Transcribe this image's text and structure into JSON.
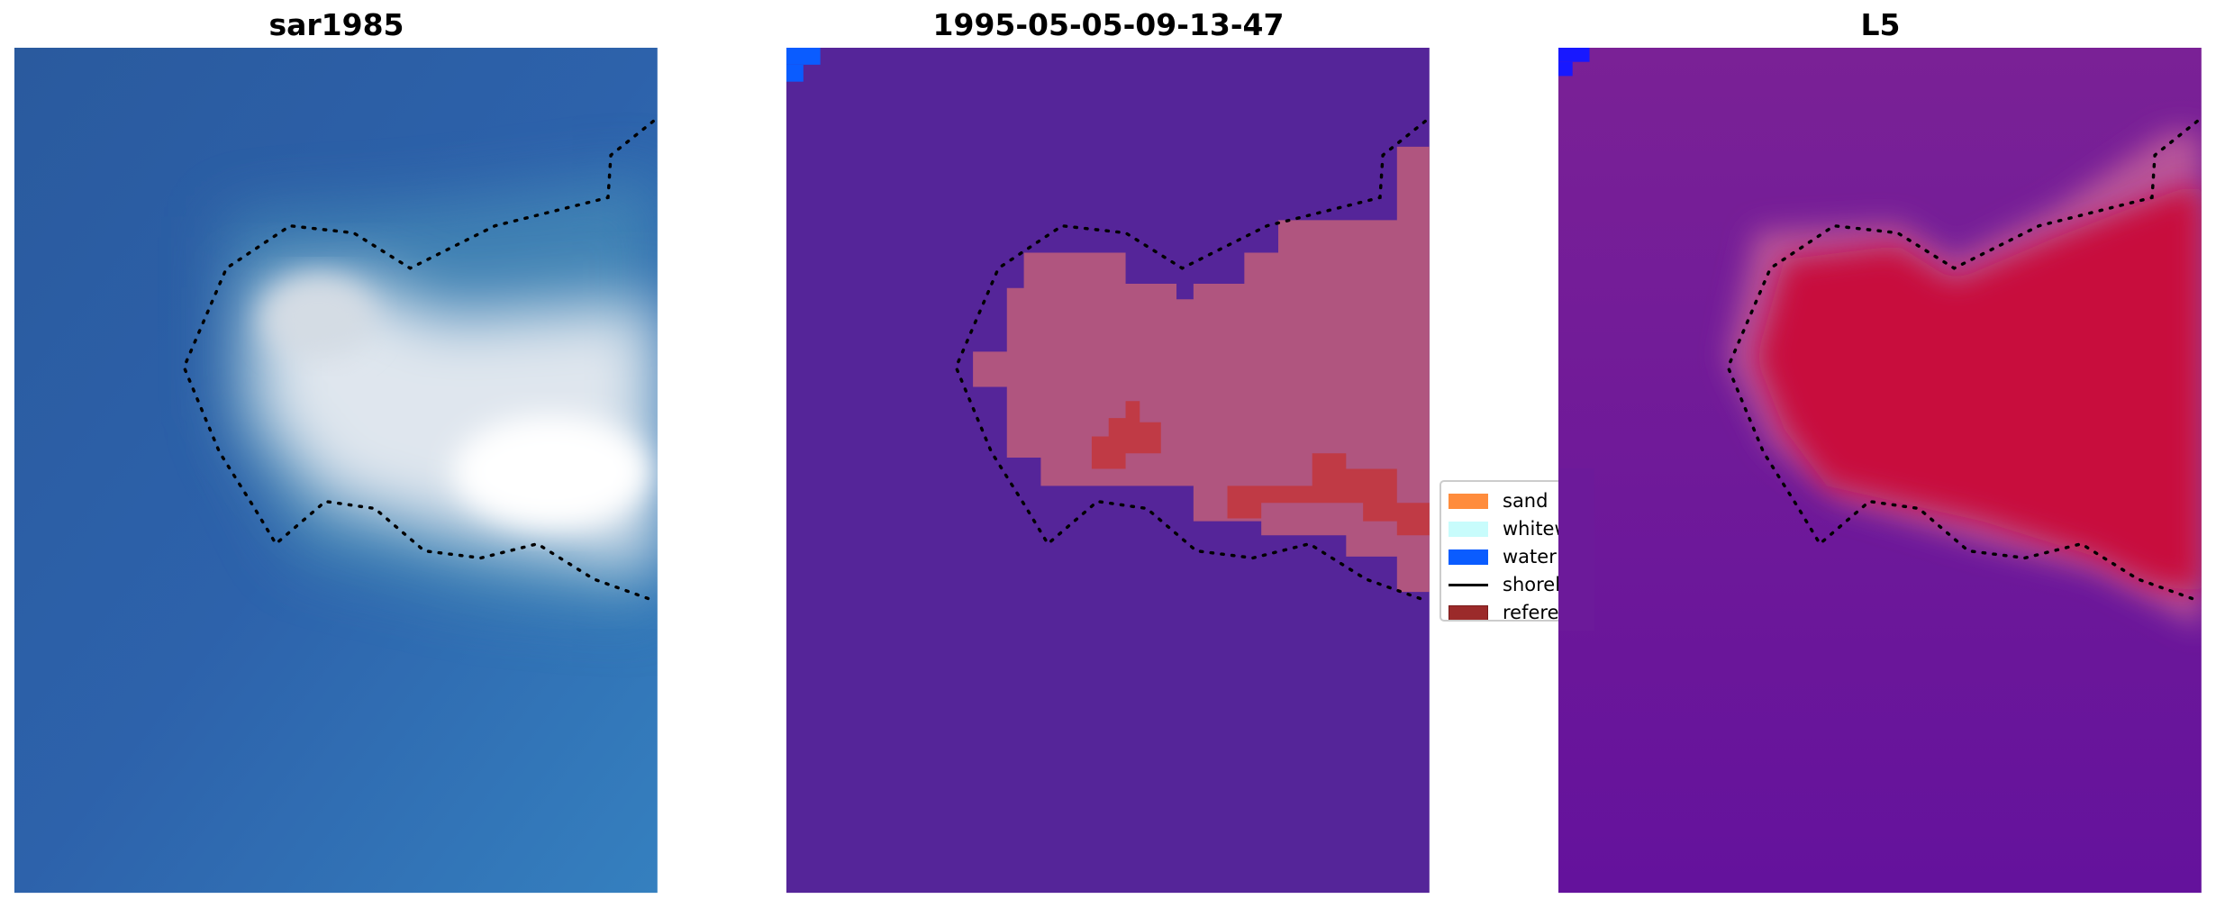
{
  "panels": [
    {
      "title": "sar1985",
      "content": "rgb-image"
    },
    {
      "title": "1995-05-05-09-13-47",
      "content": "classified-image"
    },
    {
      "title": "L5",
      "content": "probability-image"
    }
  ],
  "legend": {
    "placement": "center-right of middle panel",
    "items": [
      {
        "label": "sand",
        "color": "#ff8c3c",
        "kind": "patch"
      },
      {
        "label": "whitewater",
        "color": "#c8fcfc",
        "kind": "patch"
      },
      {
        "label": "water",
        "color": "#0a5cff",
        "kind": "patch"
      },
      {
        "label": "shoreline",
        "color": "#000000",
        "kind": "line"
      },
      {
        "label": "reference",
        "color": "#9b2a2a",
        "kind": "patch"
      }
    ]
  },
  "colors": {
    "sar_water": "#2a5ea8",
    "class_water_bg": "#552599",
    "class_sand_overlay": "#b0557f",
    "class_reference": "#c03a45",
    "l5_bg": "#6a1a98",
    "l5_high": "#c8083a"
  }
}
